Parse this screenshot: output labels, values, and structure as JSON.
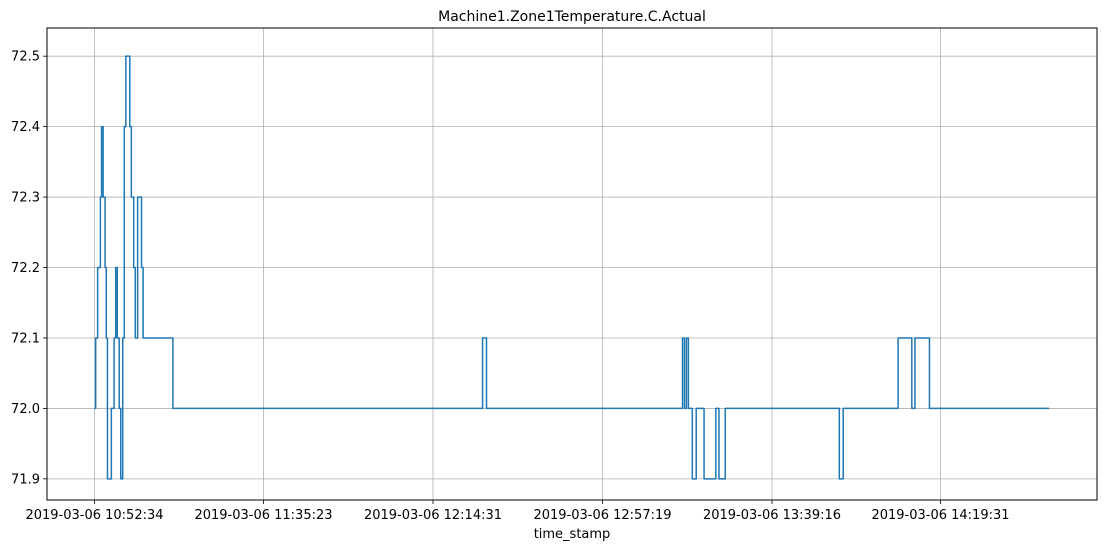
{
  "chart_data": {
    "type": "line",
    "title": "Machine1.Zone1Temperature.C.Actual",
    "xlabel": "time_stamp",
    "ylabel": "",
    "grid": true,
    "color": "#1f77b4",
    "x_tick_labels": [
      "2019-03-06 10:52:34",
      "2019-03-06 11:35:23",
      "2019-03-06 12:14:31",
      "2019-03-06 12:57:19",
      "2019-03-06 13:39:16",
      "2019-03-06 14:19:31"
    ],
    "y_ticks": [
      71.9,
      72.0,
      72.1,
      72.2,
      72.3,
      72.4,
      72.5
    ],
    "y_tick_labels": [
      "71.9",
      "72.0",
      "72.1",
      "72.2",
      "72.3",
      "72.4",
      "72.5"
    ],
    "ylim": [
      71.87,
      72.54
    ],
    "series": [
      {
        "name": "",
        "points": [
          [
            0,
            72.0
          ],
          [
            0.3,
            72.0
          ],
          [
            0.3,
            72.1
          ],
          [
            0.8,
            72.1
          ],
          [
            0.8,
            72.2
          ],
          [
            1.5,
            72.2
          ],
          [
            1.5,
            72.3
          ],
          [
            1.8,
            72.3
          ],
          [
            1.8,
            72.4
          ],
          [
            2.2,
            72.4
          ],
          [
            2.2,
            72.3
          ],
          [
            2.7,
            72.3
          ],
          [
            2.7,
            72.2
          ],
          [
            3.0,
            72.2
          ],
          [
            3.0,
            72.1
          ],
          [
            3.3,
            72.1
          ],
          [
            3.3,
            71.9
          ],
          [
            4.3,
            71.9
          ],
          [
            4.3,
            72.0
          ],
          [
            5.0,
            72.0
          ],
          [
            5.0,
            72.1
          ],
          [
            5.4,
            72.1
          ],
          [
            5.4,
            72.2
          ],
          [
            5.8,
            72.2
          ],
          [
            5.8,
            72.1
          ],
          [
            6.3,
            72.1
          ],
          [
            6.3,
            72.0
          ],
          [
            6.7,
            72.0
          ],
          [
            6.7,
            71.9
          ],
          [
            7.2,
            71.9
          ],
          [
            7.2,
            72.1
          ],
          [
            7.6,
            72.1
          ],
          [
            7.6,
            72.4
          ],
          [
            8.0,
            72.4
          ],
          [
            8.0,
            72.5
          ],
          [
            9.0,
            72.5
          ],
          [
            9.0,
            72.4
          ],
          [
            9.4,
            72.4
          ],
          [
            9.4,
            72.3
          ],
          [
            10.0,
            72.3
          ],
          [
            10.0,
            72.2
          ],
          [
            10.4,
            72.2
          ],
          [
            10.4,
            72.1
          ],
          [
            11.0,
            72.1
          ],
          [
            11.0,
            72.3
          ],
          [
            12.0,
            72.3
          ],
          [
            12.0,
            72.2
          ],
          [
            12.4,
            72.2
          ],
          [
            12.4,
            72.1
          ],
          [
            20.0,
            72.1
          ],
          [
            20.0,
            72.0
          ],
          [
            99.0,
            72.0
          ],
          [
            99.0,
            72.1
          ],
          [
            100.0,
            72.1
          ],
          [
            100.0,
            72.0
          ],
          [
            150.0,
            72.0
          ],
          [
            150.0,
            72.1
          ],
          [
            150.5,
            72.1
          ],
          [
            150.5,
            72.0
          ],
          [
            151.0,
            72.0
          ],
          [
            151.0,
            72.1
          ],
          [
            151.5,
            72.1
          ],
          [
            151.5,
            72.0
          ],
          [
            152.5,
            72.0
          ],
          [
            152.5,
            71.9
          ],
          [
            153.5,
            71.9
          ],
          [
            153.5,
            72.0
          ],
          [
            155.5,
            72.0
          ],
          [
            155.5,
            71.9
          ],
          [
            158.5,
            71.9
          ],
          [
            158.5,
            72.0
          ],
          [
            159.3,
            72.0
          ],
          [
            159.3,
            71.9
          ],
          [
            160.9,
            71.9
          ],
          [
            160.9,
            72.0
          ],
          [
            190.0,
            72.0
          ],
          [
            190.0,
            71.9
          ],
          [
            191.0,
            71.9
          ],
          [
            191.0,
            72.0
          ],
          [
            205.0,
            72.0
          ],
          [
            205.0,
            72.1
          ],
          [
            208.5,
            72.1
          ],
          [
            208.5,
            72.0
          ],
          [
            209.3,
            72.0
          ],
          [
            209.3,
            72.1
          ],
          [
            213.0,
            72.1
          ],
          [
            213.0,
            72.0
          ],
          [
            243.5,
            72.0
          ]
        ]
      }
    ]
  }
}
